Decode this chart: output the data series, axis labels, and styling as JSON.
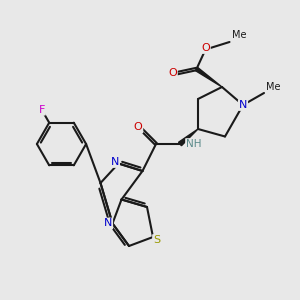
{
  "background_color": "#e8e8e8",
  "bond_color": "#1a1a1a",
  "bond_width": 1.5,
  "atoms": {
    "S": {
      "color": "#999900"
    },
    "N": {
      "color": "#0000cc"
    },
    "O": {
      "color": "#cc0000"
    },
    "F": {
      "color": "#cc00cc"
    },
    "NH": {
      "color": "#5a8a8a"
    }
  },
  "figsize": [
    3.0,
    3.0
  ],
  "dpi": 100
}
